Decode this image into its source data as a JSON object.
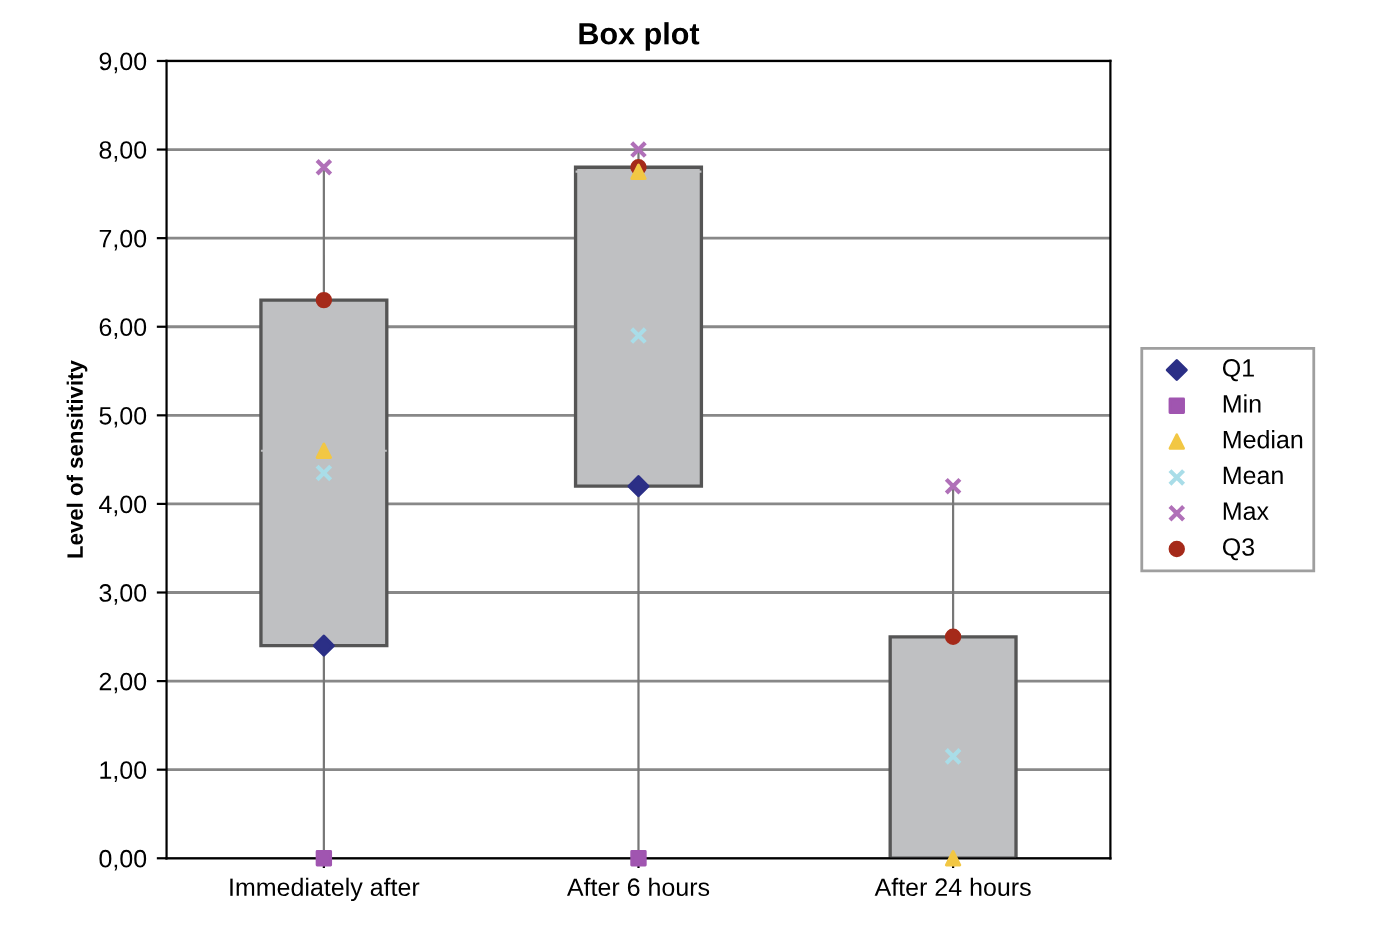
{
  "chart_data": {
    "type": "box",
    "title": "Box plot",
    "ylabel": "Level of sensitivity",
    "categories": [
      "Immediately after",
      "After 6 hours",
      "After 24 hours"
    ],
    "boxes": [
      {
        "low": 0,
        "q1": 2.4,
        "median": 4.6,
        "q3": 6.3,
        "high": 7.8
      },
      {
        "low": 0,
        "q1": 4.2,
        "median": 7.75,
        "q3": 7.8,
        "high": 8.0
      },
      {
        "low": 0,
        "q1": 0,
        "median": 0,
        "q3": 2.5,
        "high": 4.2
      }
    ],
    "color": "#bfc0c2",
    "series": [
      {
        "name": "Q1",
        "type": "scatter",
        "marker": "diamond",
        "color": "#2b2f86",
        "x": [
          "Immediately after",
          "After 6 hours",
          "After 24 hours"
        ],
        "values": [
          2.4,
          4.2,
          null
        ]
      },
      {
        "name": "Min",
        "type": "scatter",
        "marker": "square",
        "color": "#a055b0",
        "x": [
          "Immediately after",
          "After 6 hours",
          "After 24 hours"
        ],
        "values": [
          0,
          0,
          null
        ]
      },
      {
        "name": "Median",
        "type": "scatter",
        "marker": "triangle",
        "color": "#f2c744",
        "x": [
          "Immediately after",
          "After 6 hours",
          "After 24 hours"
        ],
        "values": [
          4.6,
          7.75,
          0
        ]
      },
      {
        "name": "Mean",
        "type": "scatter",
        "marker": "cross",
        "color": "#a9dde8",
        "x": [
          "Immediately after",
          "After 6 hours",
          "After 24 hours"
        ],
        "values": [
          4.35,
          5.9,
          1.15
        ]
      },
      {
        "name": "Max",
        "type": "scatter",
        "marker": "cross",
        "color": "#b070b8",
        "x": [
          "Immediately after",
          "After 6 hours",
          "After 24 hours"
        ],
        "values": [
          7.8,
          8.0,
          4.2
        ]
      },
      {
        "name": "Q3",
        "type": "scatter",
        "marker": "circle",
        "color": "#a52a1a",
        "x": [
          "Immediately after",
          "After 6 hours",
          "After 24 hours"
        ],
        "values": [
          6.3,
          7.8,
          2.5
        ]
      }
    ],
    "ylim": [
      0,
      9
    ],
    "yticks": [
      {
        "value": 0,
        "label": "0,00"
      },
      {
        "value": 1,
        "label": "1,00"
      },
      {
        "value": 2,
        "label": "2,00"
      },
      {
        "value": 3,
        "label": "3,00"
      },
      {
        "value": 4,
        "label": "4,00"
      },
      {
        "value": 5,
        "label": "5,00"
      },
      {
        "value": 6,
        "label": "6,00"
      },
      {
        "value": 7,
        "label": "7,00"
      },
      {
        "value": 8,
        "label": "8,00"
      },
      {
        "value": 9,
        "label": "9,00"
      }
    ],
    "grid": "y",
    "legend": "right"
  }
}
